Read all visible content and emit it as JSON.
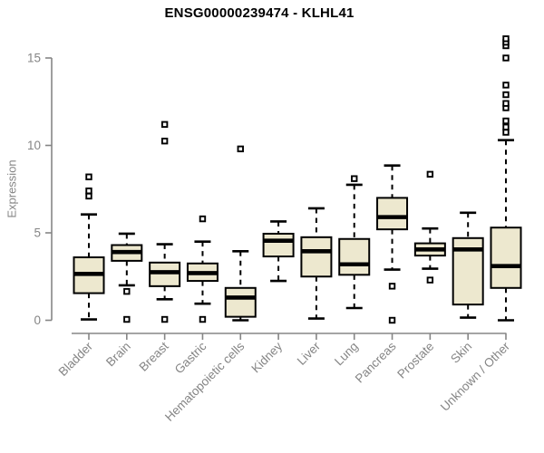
{
  "chart_data": {
    "type": "boxplot",
    "title": "ENSG00000239474 - KLHL41",
    "xlabel": "",
    "ylabel": "Expression",
    "yticks": [
      0,
      5,
      10,
      15
    ],
    "yaxis_range": [
      0,
      15
    ],
    "grid": false,
    "legend": "none",
    "categories": [
      "Bladder",
      "Brain",
      "Breast",
      "Gastric",
      "Hematopoietic cells",
      "Kidney",
      "Liver",
      "Lung",
      "Pancreas",
      "Prostate",
      "Skin",
      "Unknown / Other"
    ],
    "boxes": [
      {
        "category": "Bladder",
        "low": 0.05,
        "q1": 1.55,
        "median": 2.65,
        "q3": 3.6,
        "high": 6.05,
        "outliers": [
          7.1,
          7.4,
          8.2
        ]
      },
      {
        "category": "Brain",
        "low": 2.0,
        "q1": 3.4,
        "median": 3.9,
        "q3": 4.3,
        "high": 4.95,
        "outliers": [
          1.65,
          0.05
        ]
      },
      {
        "category": "Breast",
        "low": 1.2,
        "q1": 1.95,
        "median": 2.75,
        "q3": 3.3,
        "high": 4.35,
        "outliers": [
          0.05,
          10.25,
          11.2
        ]
      },
      {
        "category": "Gastric",
        "low": 0.95,
        "q1": 2.25,
        "median": 2.7,
        "q3": 3.25,
        "high": 4.5,
        "outliers": [
          0.05,
          5.8
        ]
      },
      {
        "category": "Hematopoietic cells",
        "low": 0.0,
        "q1": 0.2,
        "median": 1.3,
        "q3": 1.85,
        "high": 3.95,
        "outliers": [
          9.8
        ]
      },
      {
        "category": "Kidney",
        "low": 2.25,
        "q1": 3.65,
        "median": 4.55,
        "q3": 4.95,
        "high": 5.65,
        "outliers": []
      },
      {
        "category": "Liver",
        "low": 0.1,
        "q1": 2.5,
        "median": 3.95,
        "q3": 4.75,
        "high": 6.4,
        "outliers": []
      },
      {
        "category": "Lung",
        "low": 0.7,
        "q1": 2.6,
        "median": 3.2,
        "q3": 4.65,
        "high": 7.75,
        "outliers": [
          8.1
        ]
      },
      {
        "category": "Pancreas",
        "low": 2.9,
        "q1": 5.2,
        "median": 5.9,
        "q3": 7.0,
        "high": 8.85,
        "outliers": [
          1.95,
          0.0
        ]
      },
      {
        "category": "Prostate",
        "low": 2.95,
        "q1": 3.7,
        "median": 4.05,
        "q3": 4.4,
        "high": 5.25,
        "outliers": [
          2.3,
          8.35
        ]
      },
      {
        "category": "Skin",
        "low": 0.15,
        "q1": 0.9,
        "median": 4.05,
        "q3": 4.7,
        "high": 6.15,
        "outliers": []
      },
      {
        "category": "Unknown / Other",
        "low": 0.0,
        "q1": 1.85,
        "median": 3.1,
        "q3": 5.3,
        "high": 10.3,
        "outliers": [
          10.75,
          11.05,
          11.4,
          12.15,
          12.4,
          12.9,
          13.45,
          15.0,
          15.7,
          15.9,
          16.1
        ]
      }
    ],
    "colors": {
      "box_fill": "#ede8cf",
      "box_border": "#000000",
      "median": "#000000",
      "whisker": "#000000",
      "outlier_fill": "#ffffff",
      "axis": "#858585",
      "title": "#000000"
    }
  }
}
